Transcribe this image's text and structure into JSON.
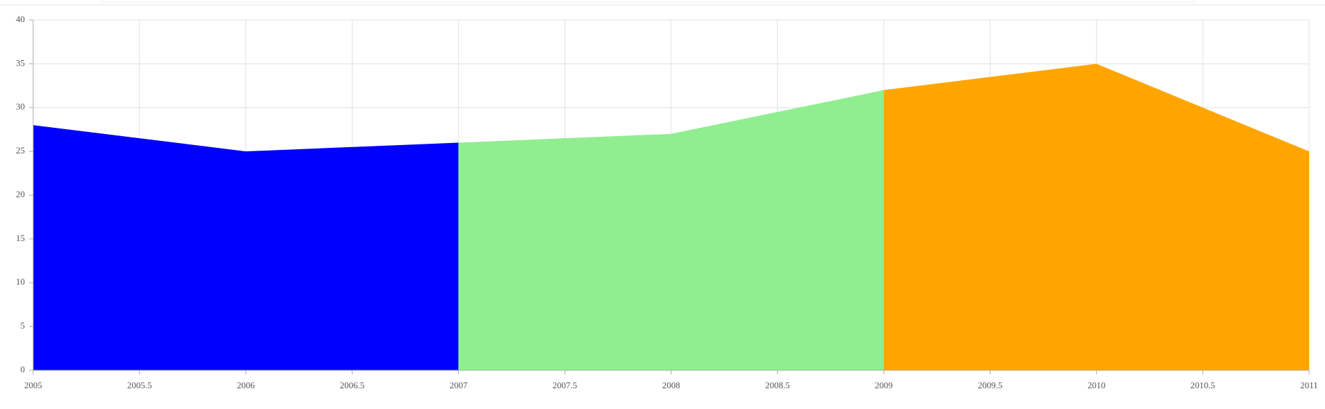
{
  "chart_data": {
    "type": "area",
    "series": [
      {
        "color": "#0000ff",
        "x": [
          2005,
          2006,
          2007
        ],
        "values": [
          28,
          25,
          26
        ]
      },
      {
        "color": "#90ee90",
        "x": [
          2007,
          2008,
          2009
        ],
        "values": [
          26,
          27,
          32
        ]
      },
      {
        "color": "#ffa500",
        "x": [
          2009,
          2010,
          2011
        ],
        "values": [
          32,
          35,
          25
        ]
      }
    ],
    "xlim": [
      2005,
      2011
    ],
    "xticks": [
      2005,
      2005.5,
      2006,
      2006.5,
      2007,
      2007.5,
      2008,
      2008.5,
      2009,
      2009.5,
      2010,
      2010.5,
      2011
    ],
    "ylim": [
      0,
      40
    ],
    "yticks": [
      0,
      5,
      10,
      15,
      20,
      25,
      30,
      35,
      40
    ],
    "grid": true
  }
}
